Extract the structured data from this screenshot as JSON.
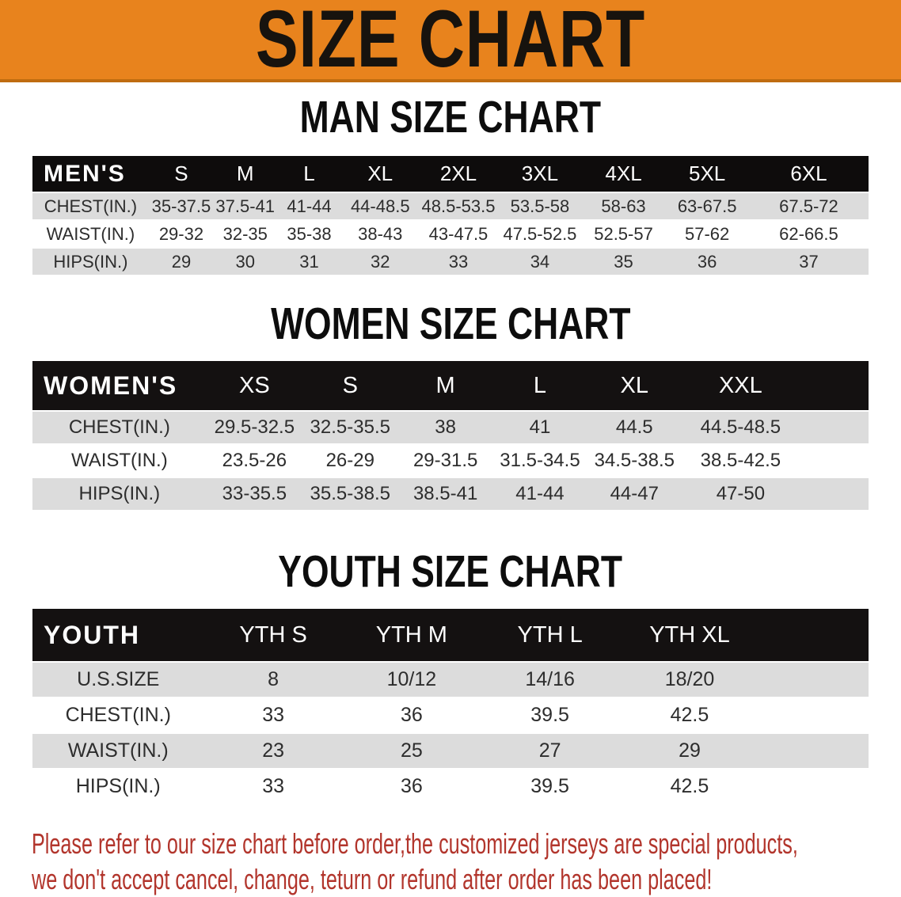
{
  "banner": {
    "title": "SIZE CHART",
    "bg_color": "#e8831d"
  },
  "chart_data": [
    {
      "type": "table",
      "title": "MAN SIZE CHART",
      "columns": [
        "MEN'S",
        "S",
        "M",
        "L",
        "XL",
        "2XL",
        "3XL",
        "4XL",
        "5XL",
        "6XL"
      ],
      "rows": [
        [
          "CHEST(IN.)",
          "35-37.5",
          "37.5-41",
          "41-44",
          "44-48.5",
          "48.5-53.5",
          "53.5-58",
          "58-63",
          "63-67.5",
          "67.5-72"
        ],
        [
          "WAIST(IN.)",
          "29-32",
          "32-35",
          "35-38",
          "38-43",
          "43-47.5",
          "47.5-52.5",
          "52.5-57",
          "57-62",
          "62-66.5"
        ],
        [
          "HIPS(IN.)",
          "29",
          "30",
          "31",
          "32",
          "33",
          "34",
          "35",
          "36",
          "37"
        ]
      ]
    },
    {
      "type": "table",
      "title": "WOMEN SIZE CHART",
      "columns": [
        "WOMEN'S",
        "XS",
        "S",
        "M",
        "L",
        "XL",
        "XXL"
      ],
      "rows": [
        [
          "CHEST(IN.)",
          "29.5-32.5",
          "32.5-35.5",
          "38",
          "41",
          "44.5",
          "44.5-48.5"
        ],
        [
          "WAIST(IN.)",
          "23.5-26",
          "26-29",
          "29-31.5",
          "31.5-34.5",
          "34.5-38.5",
          "38.5-42.5"
        ],
        [
          "HIPS(IN.)",
          "33-35.5",
          "35.5-38.5",
          "38.5-41",
          "41-44",
          "44-47",
          "47-50"
        ]
      ]
    },
    {
      "type": "table",
      "title": "YOUTH SIZE CHART",
      "columns": [
        "YOUTH",
        "YTH S",
        "YTH M",
        "YTH L",
        "YTH XL"
      ],
      "rows": [
        [
          "U.S.SIZE",
          "8",
          "10/12",
          "14/16",
          "18/20"
        ],
        [
          "CHEST(IN.)",
          "33",
          "36",
          "39.5",
          "42.5"
        ],
        [
          "WAIST(IN.)",
          "23",
          "25",
          "27",
          "29"
        ],
        [
          "HIPS(IN.)",
          "33",
          "36",
          "39.5",
          "42.5"
        ]
      ]
    }
  ],
  "footnote": {
    "lines": [
      "Please refer to our size chart before order,the customized jerseys are special products,",
      "we don't accept cancel, change, teturn or refund after order has been placed!"
    ],
    "color": "#b2352c"
  }
}
